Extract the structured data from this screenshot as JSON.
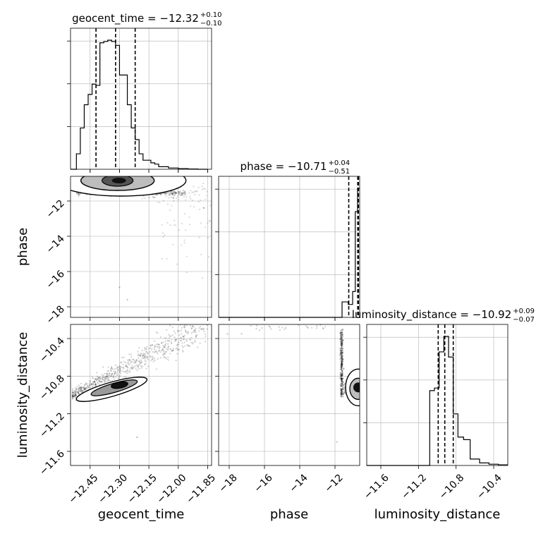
{
  "chart_data": {
    "type": "corner",
    "parameters": [
      "geocent_time",
      "phase",
      "luminosity_distance"
    ],
    "axis_labels": {
      "geocent_time": "geocent_time",
      "phase": "phase",
      "luminosity_distance": "luminosity_distance"
    },
    "titles": [
      {
        "parameter": "geocent_time",
        "text": "geocent_time = −12.32",
        "plus": "+0.10",
        "minus": "−0.10"
      },
      {
        "parameter": "phase",
        "text": "phase = −10.71",
        "plus": "+0.04",
        "minus": "−0.51"
      },
      {
        "parameter": "luminosity_distance",
        "text": "luminosity_distance = −10.92",
        "plus": "+0.09",
        "minus": "−0.07"
      }
    ],
    "ranges": {
      "geocent_time": [
        -12.55,
        -11.83
      ],
      "phase": [
        -18.6,
        -10.6
      ],
      "luminosity_distance": [
        -11.75,
        -10.25
      ]
    },
    "ticks": {
      "geocent_time": [
        -12.45,
        -12.3,
        -12.15,
        -12.0,
        -11.85
      ],
      "phase": [
        -18,
        -16,
        -14,
        -12
      ],
      "luminosity_distance": [
        -11.6,
        -11.2,
        -10.8,
        -10.4
      ]
    },
    "tick_labels": {
      "geocent_time": [
        "−12.45",
        "−12.30",
        "−12.15",
        "−12.00",
        "−11.85"
      ],
      "phase": [
        "−18",
        "−16",
        "−14",
        "−12"
      ],
      "luminosity_distance": [
        "−11.6",
        "−11.2",
        "−10.8",
        "−10.4"
      ]
    },
    "quantile_lines": {
      "geocent_time": [
        -12.42,
        -12.32,
        -12.22
      ],
      "phase": [
        -11.22,
        -10.71,
        -10.67
      ],
      "luminosity_distance": [
        -10.99,
        -10.92,
        -10.83
      ]
    },
    "histograms": {
      "geocent_time": {
        "bin_edges": [
          -12.55,
          -12.52,
          -12.5,
          -12.48,
          -12.46,
          -12.44,
          -12.42,
          -12.4,
          -12.38,
          -12.36,
          -12.34,
          -12.32,
          -12.3,
          -12.28,
          -12.26,
          -12.24,
          -12.22,
          -12.2,
          -12.18,
          -12.16,
          -12.14,
          -12.12,
          -12.1,
          -12.05,
          -12.0,
          -11.95,
          -11.9,
          -11.85
        ],
        "counts": [
          0,
          0.12,
          0.32,
          0.5,
          0.58,
          0.66,
          0.65,
          0.98,
          0.99,
          1.0,
          0.99,
          0.96,
          0.73,
          0.73,
          0.5,
          0.32,
          0.23,
          0.12,
          0.07,
          0.07,
          0.05,
          0.04,
          0.02,
          0.01,
          0.005,
          0.002,
          0
        ]
      },
      "phase": {
        "bin_edges": [
          -18.6,
          -11.6,
          -11.25,
          -11.0,
          -10.85,
          -10.72,
          -10.6
        ],
        "counts": [
          0.0,
          0.12,
          0.1,
          0.2,
          0.82,
          1.0
        ]
      },
      "luminosity_distance": {
        "bin_edges": [
          -11.75,
          -11.08,
          -11.03,
          -10.98,
          -10.93,
          -10.88,
          -10.83,
          -10.78,
          -10.72,
          -10.65,
          -10.55,
          -10.45,
          -10.35,
          -10.25
        ],
        "counts": [
          0,
          0.58,
          0.6,
          0.88,
          1.0,
          0.84,
          0.4,
          0.22,
          0.2,
          0.05,
          0.02,
          0.01,
          0.005
        ]
      }
    },
    "scatter_samples": [
      {
        "x": "geocent_time",
        "y": "phase",
        "cluster": {
          "cx": -12.3,
          "cy": -11.1,
          "sx": 0.08,
          "sy": 0.25,
          "n": 420
        },
        "band": {
          "y": -11.55,
          "x0": -12.52,
          "x1": -12.0,
          "n": 260
        },
        "tail": {
          "n": 60
        }
      },
      {
        "x": "geocent_time",
        "y": "luminosity_distance",
        "line": {
          "x0": -12.54,
          "y0": -11.0,
          "x1": -11.85,
          "y1": -10.25
        },
        "n": 700
      },
      {
        "x": "phase",
        "y": "luminosity_distance",
        "spine": {
          "x": -11.6,
          "y0": -10.3,
          "y1": -11.0
        },
        "cluster": {
          "cx": -10.8,
          "cy": -10.92
        },
        "n": 500
      }
    ],
    "grid": true
  }
}
